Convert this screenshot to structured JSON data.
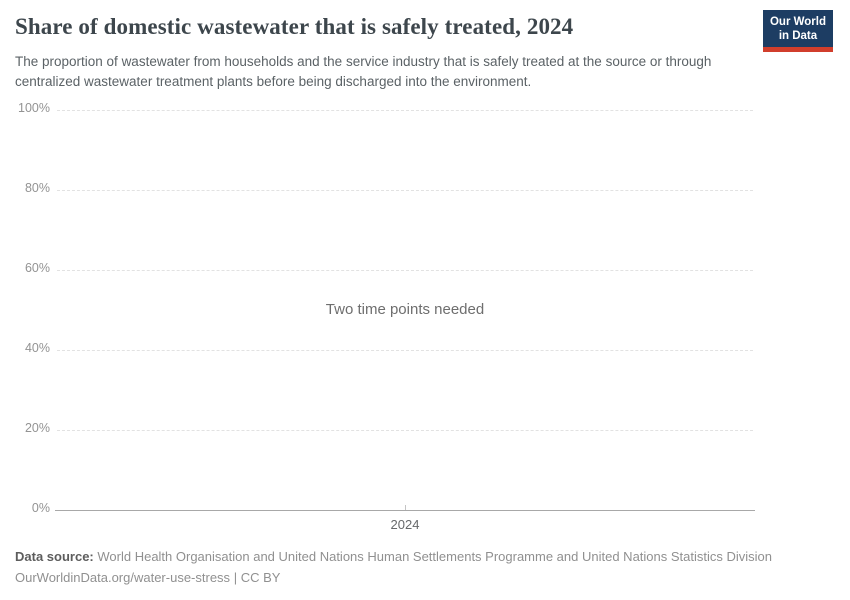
{
  "header": {
    "title": "Share of domestic wastewater that is safely treated, 2024",
    "subtitle": "The proportion of wastewater from households and the service industry that is safely treated at the source or through centralized wastewater treatment plants before being discharged into the environment.",
    "logo": {
      "line1": "Our World",
      "line2": "in Data",
      "background_color": "#1d3d63",
      "accent_color": "#d13e2c"
    }
  },
  "chart_data": {
    "type": "line",
    "title": "Share of domestic wastewater that is safely treated, 2024",
    "series": [],
    "empty_message": "Two time points needed",
    "ylim": [
      0,
      100
    ],
    "y_ticks": [
      {
        "label": "100%",
        "value": 100
      },
      {
        "label": "80%",
        "value": 80
      },
      {
        "label": "60%",
        "value": 60
      },
      {
        "label": "40%",
        "value": 40
      },
      {
        "label": "20%",
        "value": 20
      },
      {
        "label": "0%",
        "value": 0
      }
    ],
    "x_ticks": [
      {
        "label": "2024",
        "position": 0.5
      }
    ],
    "grid": "horizontal-dashed",
    "legend": "none"
  },
  "footer": {
    "data_source_label": "Data source:",
    "data_source": "World Health Organisation and United Nations Human Settlements Programme and United Nations Statistics Division",
    "link": "OurWorldinData.org/water-use-stress",
    "separator": "|",
    "license": "CC BY"
  }
}
